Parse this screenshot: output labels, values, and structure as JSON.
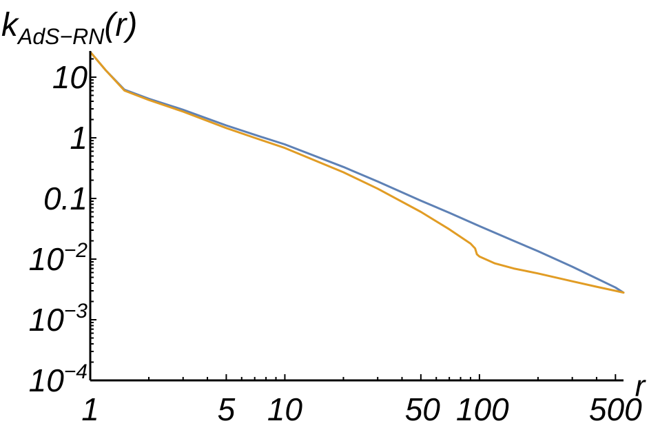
{
  "chart_data": {
    "type": "line",
    "title": "",
    "xlabel": "r",
    "ylabel": {
      "base": "k",
      "subscript": "AdS−RN",
      "argument": "(r)"
    },
    "x_scale": "log",
    "y_scale": "log",
    "xlim": [
      1,
      550
    ],
    "ylim": [
      0.0001,
      27
    ],
    "x_ticks": [
      {
        "value": 1,
        "label": "1"
      },
      {
        "value": 5,
        "label": "5"
      },
      {
        "value": 10,
        "label": "10"
      },
      {
        "value": 50,
        "label": "50"
      },
      {
        "value": 100,
        "label": "100"
      },
      {
        "value": 500,
        "label": "500"
      }
    ],
    "y_ticks": [
      {
        "value": 10,
        "label": "10"
      },
      {
        "value": 1,
        "label": "1"
      },
      {
        "value": 0.1,
        "label": "0.1"
      },
      {
        "value": 0.01,
        "base": "10",
        "exp": "−2"
      },
      {
        "value": 0.001,
        "base": "10",
        "exp": "−3"
      },
      {
        "value": 0.0001,
        "base": "10",
        "exp": "−4"
      }
    ],
    "grid": false,
    "legend": "none",
    "series": [
      {
        "color": "#5e81b5",
        "x": [
          1.0,
          1.2,
          1.5,
          2.0,
          3.0,
          5.0,
          7.0,
          10.0,
          20.0,
          30.0,
          50.0,
          70.0,
          100.0,
          150.0,
          200.0,
          300.0,
          400.0,
          500.0,
          550.0
        ],
        "y": [
          26.0,
          13.0,
          6.2,
          4.4,
          2.9,
          1.6,
          1.12,
          0.78,
          0.33,
          0.19,
          0.092,
          0.058,
          0.035,
          0.02,
          0.0135,
          0.0075,
          0.0048,
          0.0034,
          0.0028
        ]
      },
      {
        "color": "#e19c24",
        "x": [
          1.0,
          1.2,
          1.5,
          2.0,
          3.0,
          5.0,
          7.0,
          10.0,
          20.0,
          30.0,
          50.0,
          70.0,
          90.0,
          95.0,
          97.0,
          100.0,
          120.0,
          150.0,
          200.0,
          300.0,
          400.0,
          500.0,
          550.0
        ],
        "y": [
          26.0,
          13.0,
          6.0,
          4.2,
          2.7,
          1.45,
          1.0,
          0.68,
          0.27,
          0.145,
          0.06,
          0.031,
          0.018,
          0.015,
          0.012,
          0.011,
          0.0085,
          0.007,
          0.0058,
          0.0043,
          0.0035,
          0.003,
          0.0028
        ]
      }
    ]
  }
}
